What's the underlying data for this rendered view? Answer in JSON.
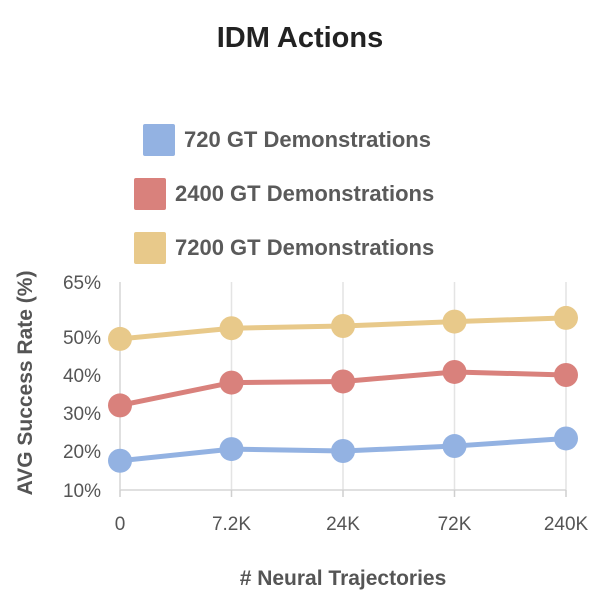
{
  "chart_data": {
    "type": "line",
    "title": "IDM Actions",
    "xlabel": "# Neural Trajectories",
    "ylabel": "AVG Success Rate (%)",
    "categories": [
      "0",
      "7.2K",
      "24K",
      "72K",
      "240K"
    ],
    "yticks": [
      "65%",
      "50%",
      "40%",
      "30%",
      "20%",
      "10%"
    ],
    "ytick_values": [
      65,
      50,
      40,
      30,
      20,
      10
    ],
    "grid": "vertical",
    "legend_position": "top",
    "series": [
      {
        "name": "720 GT Demonstrations",
        "color": "#93b2e2",
        "values": [
          17.5,
          20.5,
          20.0,
          21.3,
          23.3
        ]
      },
      {
        "name": "2400 GT Demonstrations",
        "color": "#d9817c",
        "values": [
          32.0,
          38.0,
          38.3,
          40.8,
          40.0
        ]
      },
      {
        "name": "7200 GT Demonstrations",
        "color": "#e8c98a",
        "values": [
          49.5,
          52.4,
          53.0,
          54.2,
          55.2
        ]
      }
    ]
  }
}
